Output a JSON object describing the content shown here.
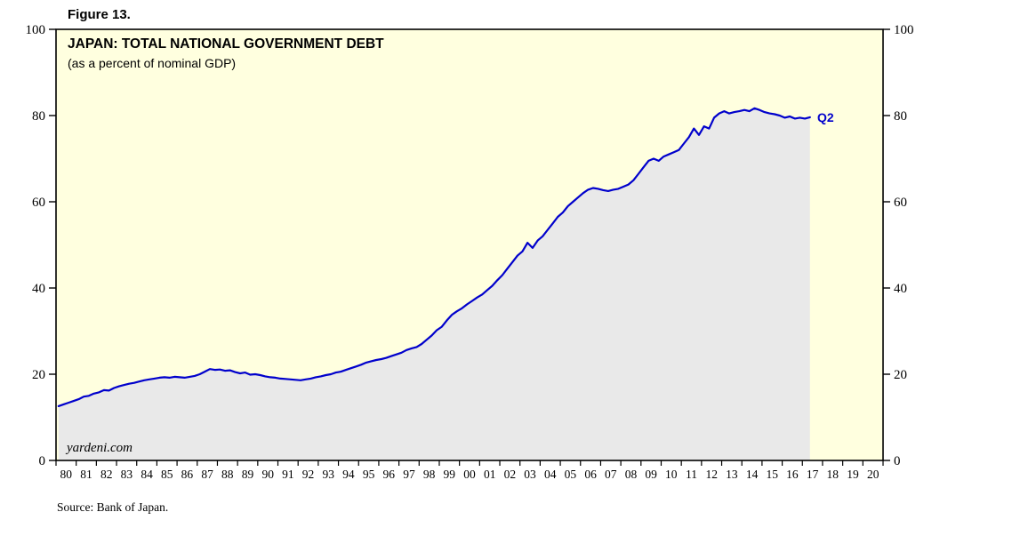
{
  "figure_label": "Figure 13.",
  "chart": {
    "title": "JAPAN: TOTAL NATIONAL GOVERNMENT DEBT",
    "subtitle": "(as a percent of nominal GDP)",
    "watermark": "yardeni.com",
    "end_label": "Q2",
    "source": "Source: Bank of Japan."
  },
  "colors": {
    "line": "#0000CC",
    "area_fill": "#E9E9E9",
    "plot_bg": "#FFFFDF",
    "frame": "#000000",
    "end_label_color": "#0000CC"
  },
  "chart_data": {
    "type": "line",
    "title": "JAPAN: TOTAL NATIONAL GOVERNMENT DEBT (as a percent of nominal GDP)",
    "xlabel": "",
    "ylabel": "",
    "ylim": [
      0,
      100
    ],
    "y_ticks": [
      0,
      20,
      40,
      60,
      80,
      100
    ],
    "grid": false,
    "legend_position": "none",
    "frequency": "quarterly",
    "x_start_year": 1980,
    "last_point_label": "2017 Q2",
    "x_tick_labels": [
      "80",
      "81",
      "82",
      "83",
      "84",
      "85",
      "86",
      "87",
      "88",
      "89",
      "90",
      "91",
      "92",
      "93",
      "94",
      "95",
      "96",
      "97",
      "98",
      "99",
      "00",
      "01",
      "02",
      "03",
      "04",
      "05",
      "06",
      "07",
      "08",
      "09",
      "10",
      "11",
      "12",
      "13",
      "14",
      "15",
      "16",
      "17",
      "18",
      "19",
      "20"
    ],
    "values": [
      12.6,
      13.0,
      13.4,
      13.8,
      14.2,
      14.8,
      15.0,
      15.5,
      15.8,
      16.3,
      16.2,
      16.8,
      17.2,
      17.5,
      17.8,
      18.0,
      18.3,
      18.6,
      18.8,
      19.0,
      19.2,
      19.3,
      19.2,
      19.4,
      19.3,
      19.2,
      19.4,
      19.6,
      20.0,
      20.6,
      21.2,
      21.0,
      21.1,
      20.8,
      20.9,
      20.5,
      20.2,
      20.4,
      19.9,
      20.0,
      19.8,
      19.5,
      19.3,
      19.2,
      19.0,
      18.9,
      18.8,
      18.7,
      18.6,
      18.8,
      19.0,
      19.3,
      19.5,
      19.8,
      20.0,
      20.4,
      20.6,
      21.0,
      21.4,
      21.8,
      22.2,
      22.7,
      23.0,
      23.3,
      23.5,
      23.8,
      24.2,
      24.6,
      25.0,
      25.6,
      26.0,
      26.3,
      27.0,
      28.0,
      29.0,
      30.2,
      31.0,
      32.5,
      33.8,
      34.6,
      35.3,
      36.2,
      37.0,
      37.8,
      38.5,
      39.5,
      40.5,
      41.8,
      43.0,
      44.5,
      46.0,
      47.5,
      48.5,
      50.5,
      49.3,
      51.0,
      52.0,
      53.5,
      55.0,
      56.5,
      57.5,
      59.0,
      60.0,
      61.0,
      62.0,
      62.8,
      63.2,
      63.0,
      62.7,
      62.5,
      62.8,
      63.0,
      63.5,
      64.0,
      65.0,
      66.5,
      68.0,
      69.5,
      70.0,
      69.5,
      70.5,
      71.0,
      71.5,
      72.0,
      73.5,
      75.0,
      77.0,
      75.5,
      77.5,
      77.0,
      79.5,
      80.5,
      81.0,
      80.5,
      80.8,
      81.0,
      81.3,
      81.0,
      81.7,
      81.3,
      80.8,
      80.5,
      80.3,
      80.0,
      79.5,
      79.8,
      79.3,
      79.5,
      79.3,
      79.6
    ]
  }
}
